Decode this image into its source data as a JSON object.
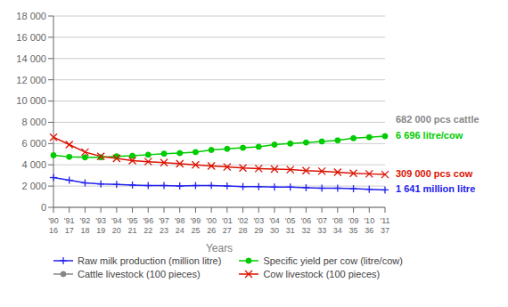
{
  "chart_data": {
    "type": "line",
    "xlabel": "Years",
    "categories": [
      "'90\n16",
      "'91\n17",
      "'92\n18",
      "'93\n19",
      "'94\n20",
      "'95\n21",
      "'96\n22",
      "'97\n23",
      "'98\n24",
      "'99\n25",
      "'00\n26",
      "'01\n27",
      "'02\n28",
      "'03\n29",
      "'04\n30",
      "'05\n31",
      "'06\n32",
      "'07\n33",
      "'08\n34",
      "'09\n35",
      "'10\n36",
      "'11\n37"
    ],
    "series": [
      {
        "name": "Raw milk production (million litre)",
        "color": "#2222ee",
        "marker": "plus",
        "values": [
          2800,
          2550,
          2300,
          2200,
          2150,
          2100,
          2050,
          2050,
          2000,
          2050,
          2050,
          2000,
          1950,
          1950,
          1900,
          1900,
          1850,
          1800,
          1800,
          1750,
          1700,
          1641
        ]
      },
      {
        "name": "Specific yield per cow (litre/cow)",
        "color": "#00cc00",
        "marker": "circle",
        "values": [
          4900,
          4750,
          4700,
          4700,
          4800,
          4850,
          4950,
          5050,
          5100,
          5200,
          5400,
          5500,
          5600,
          5700,
          5900,
          6000,
          6100,
          6200,
          6300,
          6500,
          6600,
          6696
        ]
      },
      {
        "name": "Cattle livestock (100 pieces)",
        "color": "#888888",
        "marker": "circle",
        "values": [
          null,
          null,
          null,
          null,
          null,
          null,
          null,
          null,
          null,
          null,
          null,
          null,
          null,
          null,
          null,
          null,
          null,
          null,
          null,
          null,
          null,
          null
        ]
      },
      {
        "name": "Cow livestock (100 pieces)",
        "color": "#dd1100",
        "marker": "x",
        "values": [
          6600,
          5900,
          5200,
          4800,
          4600,
          4400,
          4300,
          4200,
          4100,
          4000,
          3900,
          3800,
          3700,
          3650,
          3600,
          3550,
          3450,
          3400,
          3300,
          3200,
          3150,
          3090
        ]
      }
    ],
    "ylim": [
      0,
      18000
    ],
    "yticks": [
      0,
      {
        "value": 2000,
        "label": "2 000"
      },
      {
        "value": 4000,
        "label": "4 000"
      },
      {
        "value": 6000,
        "label": "6 000"
      },
      {
        "value": 8000,
        "label": "8 000"
      },
      {
        "value": 10000,
        "label": "10 000"
      },
      {
        "value": 12000,
        "label": "12 000"
      },
      {
        "value": 14000,
        "label": "14 000"
      },
      {
        "value": 16000,
        "label": "16 000"
      },
      {
        "value": 18000,
        "label": "18 000"
      }
    ],
    "grid": true,
    "legend": "bottom",
    "annotations": [
      {
        "text": "682 000 pcs cattle",
        "y": 8200,
        "color": "#888888"
      },
      {
        "text": "6 696 litre/cow",
        "y": 6696,
        "color": "#00cc00"
      },
      {
        "text": "309 000 pcs cow",
        "y": 3090,
        "color": "#dd1100"
      },
      {
        "text": "1 641 million litre",
        "y": 1641,
        "color": "#2222ee"
      }
    ]
  }
}
